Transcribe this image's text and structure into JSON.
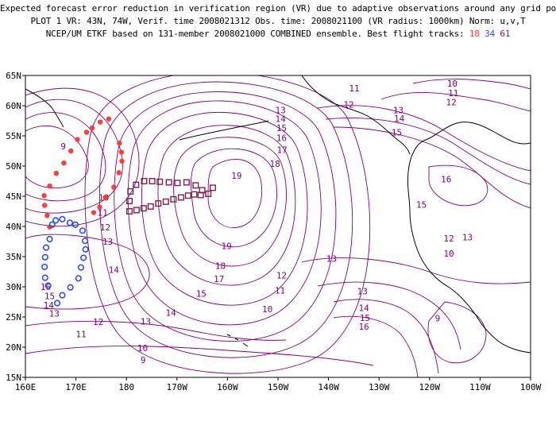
{
  "title": {
    "line1": "Expected forecast error reduction in verification region (VR) due to adaptive observations around any grid point.",
    "line2": "PLOT 1 VR: 43N, 74W, Verif. time 2008021312 Obs. time: 2008021100 (VR radius: 1000km) Norm: u,v,T",
    "line3_prefix": "NCEP/UM ETKF based on 131-member 2008021000 COMBINED ensemble.  Best flight tracks:",
    "tracks": [
      {
        "label": "18",
        "color": "#ff3b3b"
      },
      {
        "label": "34",
        "color": "#2b4cff"
      },
      {
        "label": "61",
        "color": "#8b1a4a"
      }
    ]
  },
  "map": {
    "lon_ticks": [
      "160E",
      "170E",
      "180",
      "170W",
      "160W",
      "150W",
      "140W",
      "130W",
      "120W",
      "110W",
      "100W"
    ],
    "lat_ticks": [
      "15N",
      "20N",
      "25N",
      "30N",
      "35N",
      "40N",
      "45N",
      "50N",
      "55N",
      "60N",
      "65N"
    ],
    "lon_range": [
      160,
      260
    ],
    "lat_range": [
      15,
      65
    ],
    "contour_color": "#800080",
    "coast_color": "#000000",
    "contour_labels": [
      {
        "t": "9",
        "lon": 167.5,
        "lat": 53.3
      },
      {
        "t": "10",
        "lon": 175.5,
        "lat": 44.8
      },
      {
        "t": "11",
        "lon": 175.3,
        "lat": 42.3
      },
      {
        "t": "12",
        "lon": 175.8,
        "lat": 39.9
      },
      {
        "t": "13",
        "lon": 176.3,
        "lat": 37.5
      },
      {
        "t": "14",
        "lon": 177.5,
        "lat": 32.8
      },
      {
        "t": "16",
        "lon": 164.0,
        "lat": 30.0
      },
      {
        "t": "15",
        "lon": 164.8,
        "lat": 28.5
      },
      {
        "t": "14",
        "lon": 164.6,
        "lat": 27.0
      },
      {
        "t": "13",
        "lon": 165.7,
        "lat": 25.6
      },
      {
        "t": "12",
        "lon": 174.4,
        "lat": 24.2
      },
      {
        "t": "11",
        "lon": 171.0,
        "lat": 22.2
      },
      {
        "t": "10",
        "lon": 183.2,
        "lat": 19.9
      },
      {
        "t": "9",
        "lon": 183.3,
        "lat": 17.9
      },
      {
        "t": "13",
        "lon": 183.8,
        "lat": 24.3
      },
      {
        "t": "14",
        "lon": 188.8,
        "lat": 25.7
      },
      {
        "t": "15",
        "lon": 194.8,
        "lat": 28.9
      },
      {
        "t": "17",
        "lon": 198.3,
        "lat": 31.3
      },
      {
        "t": "18",
        "lon": 198.6,
        "lat": 33.5
      },
      {
        "t": "19",
        "lon": 199.8,
        "lat": 36.8
      },
      {
        "t": "19",
        "lon": 201.8,
        "lat": 48.4
      },
      {
        "t": "18",
        "lon": 209.4,
        "lat": 50.4
      },
      {
        "t": "17",
        "lon": 210.8,
        "lat": 52.7
      },
      {
        "t": "16",
        "lon": 210.7,
        "lat": 54.7
      },
      {
        "t": "15",
        "lon": 210.7,
        "lat": 56.3
      },
      {
        "t": "14",
        "lon": 210.5,
        "lat": 57.8
      },
      {
        "t": "13",
        "lon": 210.5,
        "lat": 59.3
      },
      {
        "t": "12",
        "lon": 224.0,
        "lat": 60.2
      },
      {
        "t": "11",
        "lon": 225.1,
        "lat": 62.9
      },
      {
        "t": "10",
        "lon": 244.5,
        "lat": 63.7
      },
      {
        "t": "11",
        "lon": 244.7,
        "lat": 62.1
      },
      {
        "t": "12",
        "lon": 244.3,
        "lat": 60.6
      },
      {
        "t": "13",
        "lon": 233.8,
        "lat": 59.3
      },
      {
        "t": "14",
        "lon": 234.0,
        "lat": 57.9
      },
      {
        "t": "15",
        "lon": 233.5,
        "lat": 55.6
      },
      {
        "t": "16",
        "lon": 243.3,
        "lat": 47.8
      },
      {
        "t": "15",
        "lon": 238.4,
        "lat": 43.6
      },
      {
        "t": "13",
        "lon": 247.5,
        "lat": 38.2
      },
      {
        "t": "12",
        "lon": 243.8,
        "lat": 38.0
      },
      {
        "t": "10",
        "lon": 243.8,
        "lat": 35.5
      },
      {
        "t": "13",
        "lon": 220.6,
        "lat": 34.7
      },
      {
        "t": "12",
        "lon": 210.7,
        "lat": 31.9
      },
      {
        "t": "11",
        "lon": 210.4,
        "lat": 29.4
      },
      {
        "t": "10",
        "lon": 207.9,
        "lat": 26.3
      },
      {
        "t": "13",
        "lon": 226.7,
        "lat": 29.3
      },
      {
        "t": "14",
        "lon": 227.0,
        "lat": 26.5
      },
      {
        "t": "15",
        "lon": 227.2,
        "lat": 24.9
      },
      {
        "t": "16",
        "lon": 227.0,
        "lat": 23.4
      },
      {
        "t": "9",
        "lon": 241.6,
        "lat": 24.8
      }
    ]
  },
  "tracks": [
    {
      "id": "18",
      "color": "#ff3b3b",
      "marker": "dot",
      "points": [
        [
          164.8,
          39.9
        ],
        [
          164.3,
          41.8
        ],
        [
          163.8,
          43.5
        ],
        [
          163.7,
          45.1
        ],
        [
          164.8,
          46.7
        ],
        [
          166.1,
          48.8
        ],
        [
          167.6,
          50.5
        ],
        [
          169.0,
          52.5
        ],
        [
          170.3,
          54.4
        ],
        [
          172.1,
          55.6
        ],
        [
          173.2,
          56.3
        ],
        [
          174.8,
          57.3
        ],
        [
          176.5,
          57.8
        ],
        [
          178.6,
          53.8
        ],
        [
          179.0,
          52.3
        ],
        [
          179.1,
          50.8
        ],
        [
          178.5,
          48.9
        ],
        [
          177.5,
          46.5
        ],
        [
          175.8,
          44.8
        ],
        [
          174.7,
          43.2
        ],
        [
          173.5,
          42.3
        ]
      ]
    },
    {
      "id": "34",
      "color": "#2b4cff",
      "marker": "circle",
      "points": [
        [
          165.3,
          40.3
        ],
        [
          166.0,
          41.0
        ],
        [
          167.3,
          41.2
        ],
        [
          168.8,
          40.6
        ],
        [
          169.9,
          40.3
        ],
        [
          171.3,
          39.3
        ],
        [
          171.8,
          37.6
        ],
        [
          171.9,
          36.2
        ],
        [
          171.5,
          34.8
        ],
        [
          171.0,
          33.2
        ],
        [
          170.5,
          31.4
        ],
        [
          168.9,
          29.9
        ],
        [
          167.3,
          28.6
        ],
        [
          166.3,
          27.3
        ],
        [
          164.8,
          37.9
        ],
        [
          164.1,
          36.5
        ],
        [
          163.9,
          34.9
        ],
        [
          163.8,
          33.3
        ],
        [
          163.9,
          31.5
        ],
        [
          164.5,
          30.2
        ]
      ]
    },
    {
      "id": "61",
      "color": "#8b1a4a",
      "marker": "square",
      "points": [
        [
          180.6,
          44.2
        ],
        [
          180.8,
          45.8
        ],
        [
          181.9,
          46.9
        ],
        [
          183.5,
          47.5
        ],
        [
          185.1,
          47.5
        ],
        [
          186.6,
          47.4
        ],
        [
          188.4,
          47.3
        ],
        [
          190.1,
          47.2
        ],
        [
          191.9,
          47.3
        ],
        [
          193.7,
          46.8
        ],
        [
          195.0,
          46.0
        ],
        [
          196.2,
          45.4
        ],
        [
          197.1,
          46.4
        ],
        [
          180.6,
          42.5
        ],
        [
          182.0,
          42.7
        ],
        [
          183.4,
          43.0
        ],
        [
          184.8,
          43.3
        ],
        [
          186.3,
          43.8
        ],
        [
          187.8,
          44.1
        ],
        [
          189.3,
          44.5
        ],
        [
          190.8,
          44.8
        ],
        [
          192.2,
          45.1
        ],
        [
          193.4,
          45.3
        ],
        [
          194.7,
          45.2
        ]
      ]
    }
  ]
}
